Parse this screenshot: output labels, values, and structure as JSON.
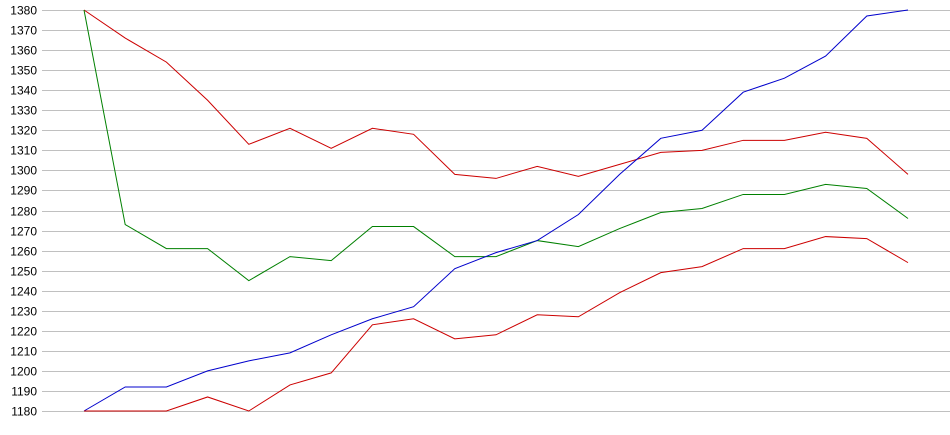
{
  "chart_data": {
    "type": "line",
    "title": "",
    "xlabel": "",
    "ylabel": "",
    "ylim": [
      1180,
      1380
    ],
    "yticks": [
      1180,
      1190,
      1200,
      1210,
      1220,
      1230,
      1240,
      1250,
      1260,
      1270,
      1280,
      1290,
      1300,
      1310,
      1320,
      1330,
      1340,
      1350,
      1360,
      1370,
      1380
    ],
    "grid": true,
    "legend": "none",
    "x": [
      1,
      2,
      3,
      4,
      5,
      6,
      7,
      8,
      9,
      10,
      11,
      12,
      13,
      14,
      15,
      16,
      17,
      18,
      19,
      20,
      21
    ],
    "series": [
      {
        "color": "#cc0000",
        "values": [
          1380,
          1366,
          1354,
          1335,
          1313,
          1321,
          1311,
          1321,
          1318,
          1298,
          1296,
          1302,
          1297,
          1303,
          1309,
          1310,
          1315,
          1315,
          1319,
          1316,
          1298
        ]
      },
      {
        "color": "#008000",
        "values": [
          1380,
          1273,
          1261,
          1261,
          1245,
          1257,
          1255,
          1272,
          1272,
          1257,
          1257,
          1265,
          1262,
          1271,
          1279,
          1281,
          1288,
          1288,
          1293,
          1291,
          1276
        ]
      },
      {
        "color": "#0000cc",
        "values": [
          1180,
          1192,
          1192,
          1200,
          1205,
          1209,
          1218,
          1226,
          1232,
          1251,
          1259,
          1265,
          1278,
          1298,
          1316,
          1320,
          1339,
          1346,
          1357,
          1377,
          1380
        ]
      },
      {
        "color": "#cc0000",
        "values": [
          1180,
          1180,
          1180,
          1187,
          1180,
          1193,
          1199,
          1223,
          1226,
          1216,
          1218,
          1228,
          1227,
          1239,
          1249,
          1252,
          1261,
          1261,
          1267,
          1266,
          1254
        ]
      }
    ],
    "grid_color": "#c0c0c0"
  }
}
